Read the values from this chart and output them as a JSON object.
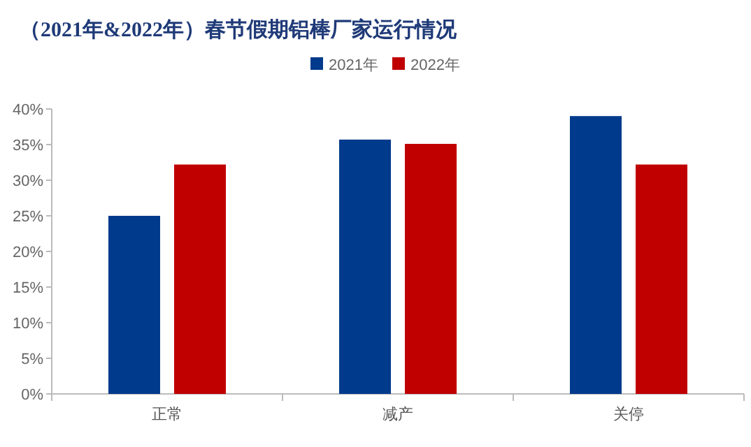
{
  "chart_data": {
    "type": "bar",
    "title": "（2021年&2022年）春节假期铝棒厂家运行情况",
    "categories": [
      "正常",
      "减产",
      "关停"
    ],
    "series": [
      {
        "name": "2021年",
        "color": "#003a8c",
        "values": [
          25,
          35.7,
          39.0
        ]
      },
      {
        "name": "2022年",
        "color": "#c00000",
        "values": [
          32.2,
          35.1,
          32.2
        ]
      }
    ],
    "ylim": [
      0,
      40
    ],
    "yticks": [
      {
        "value": 0,
        "label": "0%"
      },
      {
        "value": 5,
        "label": "5%"
      },
      {
        "value": 10,
        "label": "10%"
      },
      {
        "value": 15,
        "label": "15%"
      },
      {
        "value": 20,
        "label": "20%"
      },
      {
        "value": 25,
        "label": "25%"
      },
      {
        "value": 30,
        "label": "30%"
      },
      {
        "value": 35,
        "label": "35%"
      },
      {
        "value": 40,
        "label": "40%"
      }
    ],
    "legend": "top",
    "grid": false
  }
}
